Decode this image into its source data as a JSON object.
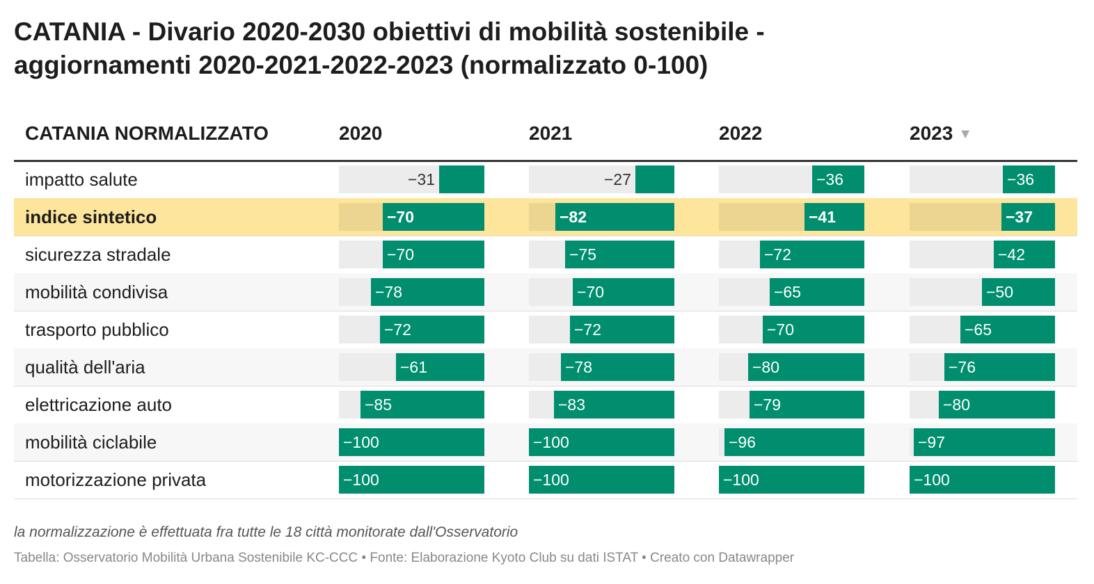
{
  "title": {
    "line1": "CATANIA - Divario 2020-2030 obiettivi di mobilità sostenibile -",
    "line2": "aggiornamenti 2020-2021-2022-2023 (normalizzato 0-100)"
  },
  "header": {
    "label_col": "CATANIA NORMALIZZATO",
    "years": [
      "2020",
      "2021",
      "2022",
      "2023"
    ],
    "sort_indicator": "▼"
  },
  "footer": {
    "note": "la normalizzazione è effettuata fra tutte le 18 città monitorate dall'Osservatorio",
    "source": "Tabella: Osservatorio Mobilità Urbana Sostenibile KC-CCC • Fonte: Elaborazione Kyoto Club su dati ISTAT • Creato con Datawrapper"
  },
  "colors": {
    "bar": "#008e6e",
    "track": "#ececec",
    "highlight": "#fde59b",
    "alt_row": "#f7f7f7"
  },
  "chart_data": {
    "type": "table",
    "columns": [
      "2020",
      "2021",
      "2022",
      "2023"
    ],
    "scale": [
      0,
      100
    ],
    "rows": [
      {
        "label": "impatto salute",
        "values": [
          "−31",
          "−27",
          "−36",
          "−36"
        ],
        "magnitude": [
          31,
          27,
          36,
          36
        ],
        "highlight": false
      },
      {
        "label": "indice sintetico",
        "values": [
          "−70",
          "−82",
          "−41",
          "−37"
        ],
        "magnitude": [
          70,
          82,
          41,
          37
        ],
        "highlight": true
      },
      {
        "label": "sicurezza stradale",
        "values": [
          "−70",
          "−75",
          "−72",
          "−42"
        ],
        "magnitude": [
          70,
          75,
          72,
          42
        ],
        "highlight": false
      },
      {
        "label": "mobilità condivisa",
        "values": [
          "−78",
          "−70",
          "−65",
          "−50"
        ],
        "magnitude": [
          78,
          70,
          65,
          50
        ],
        "highlight": false
      },
      {
        "label": "trasporto pubblico",
        "values": [
          "−72",
          "−72",
          "−70",
          "−65"
        ],
        "magnitude": [
          72,
          72,
          70,
          65
        ],
        "highlight": false
      },
      {
        "label": "qualità dell'aria",
        "values": [
          "−61",
          "−78",
          "−80",
          "−76"
        ],
        "magnitude": [
          61,
          78,
          80,
          76
        ],
        "highlight": false
      },
      {
        "label": "elettricazione auto",
        "values": [
          "−85",
          "−83",
          "−79",
          "−80"
        ],
        "magnitude": [
          85,
          83,
          79,
          80
        ],
        "highlight": false
      },
      {
        "label": "mobilità ciclabile",
        "values": [
          "−100",
          "−100",
          "−96",
          "−97"
        ],
        "magnitude": [
          100,
          100,
          96,
          97
        ],
        "highlight": false
      },
      {
        "label": "motorizzazione privata",
        "values": [
          "−100",
          "−100",
          "−100",
          "−100"
        ],
        "magnitude": [
          100,
          100,
          100,
          100
        ],
        "highlight": false
      }
    ]
  }
}
